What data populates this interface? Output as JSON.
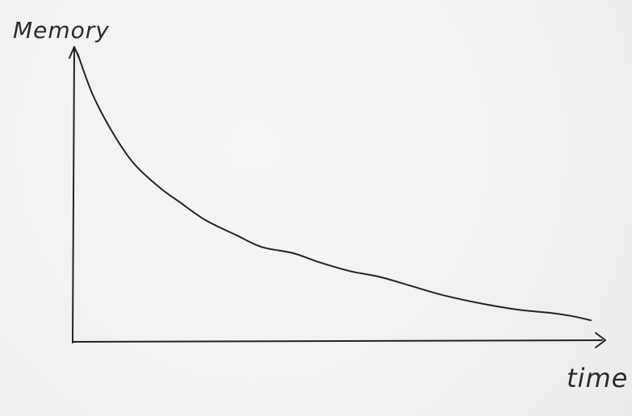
{
  "chart_data": {
    "type": "line",
    "title": "",
    "xlabel": "time",
    "ylabel": "Memory",
    "grid": false,
    "style": "hand-drawn sketch",
    "colors": {
      "ink": "#222222",
      "paper": "#f1f1f0"
    },
    "xlim": [
      0,
      1
    ],
    "ylim": [
      0,
      1
    ],
    "x": [
      0.0,
      0.03,
      0.07,
      0.11,
      0.16,
      0.2,
      0.25,
      0.31,
      0.36,
      0.42,
      0.47,
      0.53,
      0.59,
      0.65,
      0.71,
      0.79,
      0.86,
      0.92,
      0.96,
      1.0
    ],
    "values": [
      0.97,
      0.83,
      0.7,
      0.6,
      0.52,
      0.47,
      0.41,
      0.36,
      0.32,
      0.3,
      0.27,
      0.24,
      0.22,
      0.19,
      0.16,
      0.13,
      0.11,
      0.1,
      0.09,
      0.075
    ]
  }
}
